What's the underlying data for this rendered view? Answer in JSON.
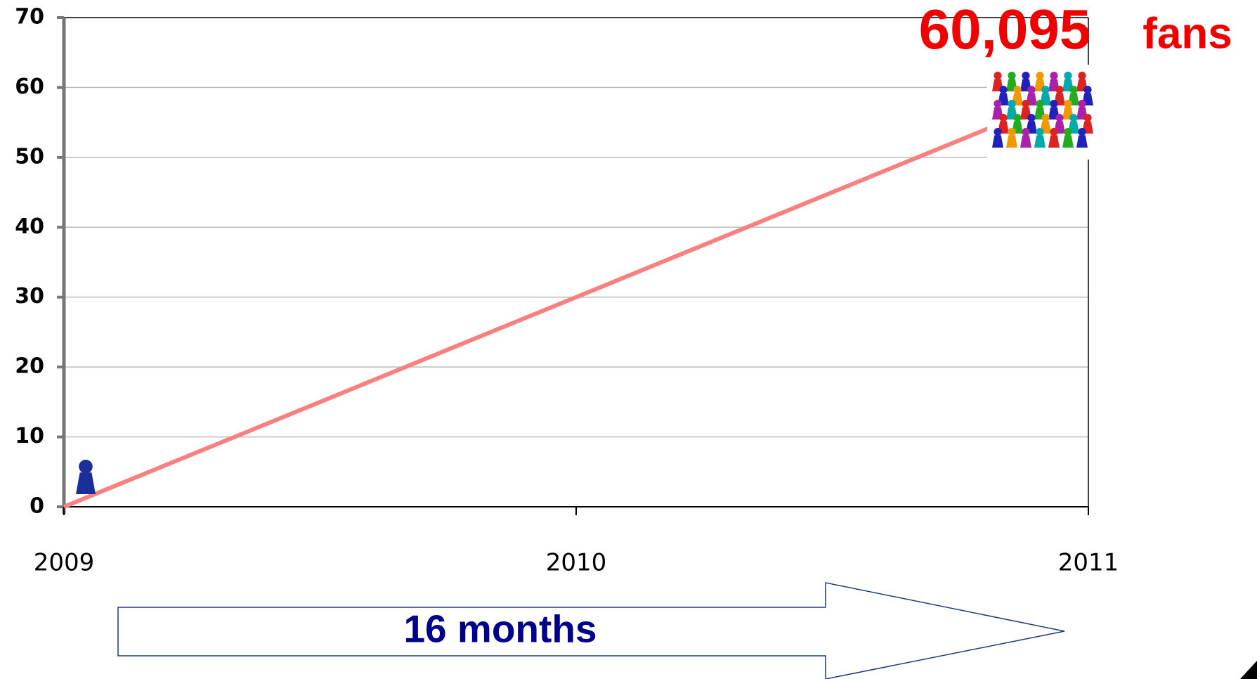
{
  "chart_data": {
    "type": "line",
    "x": [
      2009,
      2011
    ],
    "series": [
      {
        "color": "#f78181",
        "values": [
          0,
          60
        ]
      }
    ],
    "xlim": [
      2009,
      2011
    ],
    "xticks": [
      2009,
      2010,
      2011
    ],
    "ylim": [
      0,
      70
    ],
    "yticks": [
      0,
      10,
      20,
      30,
      40,
      50,
      60,
      70
    ],
    "grid": true,
    "annotation_value": "60,095",
    "annotation_unit": "fans",
    "arrow_label": "16 months"
  }
}
